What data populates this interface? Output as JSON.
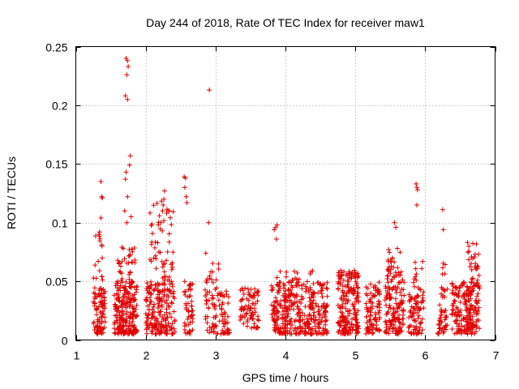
{
  "chart_data": {
    "type": "scatter",
    "title": "Day 244 of 2018, Rate Of TEC Index for receiver maw1",
    "xlabel": "GPS time / hours",
    "ylabel": "ROTI / TECUs",
    "xlim": [
      1,
      7
    ],
    "ylim": [
      0,
      0.25
    ],
    "x_ticks": [
      1,
      2,
      3,
      4,
      5,
      6,
      7
    ],
    "x_tick_labels": [
      "1",
      "2",
      "3",
      "4",
      "5",
      "6",
      "7"
    ],
    "y_ticks": [
      0,
      0.05,
      0.1,
      0.15,
      0.2,
      0.25
    ],
    "y_tick_labels": [
      "0",
      "0.05",
      "0.1",
      "0.15",
      "0.2",
      "0.25"
    ],
    "grid": true,
    "marker": "+",
    "series_color": "#e00000",
    "clusters": [
      {
        "x0": 1.25,
        "x1": 1.42,
        "ylo": 0.005,
        "yhi": 0.045,
        "n": 90
      },
      {
        "x0": 1.25,
        "x1": 1.4,
        "ylo": 0.05,
        "yhi": 0.09,
        "n": 14
      },
      {
        "x0": 1.55,
        "x1": 1.88,
        "ylo": 0.005,
        "yhi": 0.05,
        "n": 220
      },
      {
        "x0": 1.58,
        "x1": 1.86,
        "ylo": 0.05,
        "yhi": 0.08,
        "n": 30
      },
      {
        "x0": 2.0,
        "x1": 2.42,
        "ylo": 0.005,
        "yhi": 0.05,
        "n": 200
      },
      {
        "x0": 2.05,
        "x1": 2.4,
        "ylo": 0.05,
        "yhi": 0.12,
        "n": 50
      },
      {
        "x0": 2.55,
        "x1": 2.68,
        "ylo": 0.005,
        "yhi": 0.05,
        "n": 50
      },
      {
        "x0": 2.85,
        "x1": 3.2,
        "ylo": 0.005,
        "yhi": 0.045,
        "n": 90
      },
      {
        "x0": 2.86,
        "x1": 3.05,
        "ylo": 0.045,
        "yhi": 0.075,
        "n": 14
      },
      {
        "x0": 3.35,
        "x1": 3.62,
        "ylo": 0.01,
        "yhi": 0.045,
        "n": 80
      },
      {
        "x0": 3.8,
        "x1": 4.6,
        "ylo": 0.005,
        "yhi": 0.05,
        "n": 360
      },
      {
        "x0": 3.84,
        "x1": 4.4,
        "ylo": 0.05,
        "yhi": 0.06,
        "n": 14
      },
      {
        "x0": 4.75,
        "x1": 5.05,
        "ylo": 0.005,
        "yhi": 0.06,
        "n": 200
      },
      {
        "x0": 5.15,
        "x1": 5.35,
        "ylo": 0.005,
        "yhi": 0.05,
        "n": 90
      },
      {
        "x0": 5.42,
        "x1": 5.7,
        "ylo": 0.005,
        "yhi": 0.05,
        "n": 130
      },
      {
        "x0": 5.45,
        "x1": 5.68,
        "ylo": 0.05,
        "yhi": 0.08,
        "n": 36
      },
      {
        "x0": 5.76,
        "x1": 5.98,
        "ylo": 0.005,
        "yhi": 0.04,
        "n": 80
      },
      {
        "x0": 5.82,
        "x1": 5.98,
        "ylo": 0.04,
        "yhi": 0.08,
        "n": 14
      },
      {
        "x0": 6.18,
        "x1": 6.32,
        "ylo": 0.005,
        "yhi": 0.03,
        "n": 40
      },
      {
        "x0": 6.22,
        "x1": 6.32,
        "ylo": 0.03,
        "yhi": 0.07,
        "n": 14
      },
      {
        "x0": 6.38,
        "x1": 6.55,
        "ylo": 0.005,
        "yhi": 0.05,
        "n": 70
      },
      {
        "x0": 6.55,
        "x1": 6.78,
        "ylo": 0.005,
        "yhi": 0.05,
        "n": 130
      },
      {
        "x0": 6.6,
        "x1": 6.78,
        "ylo": 0.05,
        "yhi": 0.085,
        "n": 26
      }
    ],
    "points": [
      [
        1.32,
        0.067
      ],
      [
        1.33,
        0.09
      ],
      [
        1.34,
        0.092
      ],
      [
        1.36,
        0.104
      ],
      [
        1.37,
        0.122
      ],
      [
        1.38,
        0.121
      ],
      [
        1.36,
        0.135
      ],
      [
        1.62,
        0.065
      ],
      [
        1.66,
        0.079
      ],
      [
        1.68,
        0.078
      ],
      [
        1.7,
        0.11
      ],
      [
        1.71,
        0.137
      ],
      [
        1.72,
        0.143
      ],
      [
        1.73,
        0.1
      ],
      [
        1.74,
        0.122
      ],
      [
        1.77,
        0.149
      ],
      [
        1.78,
        0.157
      ],
      [
        1.79,
        0.105
      ],
      [
        1.71,
        0.208
      ],
      [
        1.74,
        0.205
      ],
      [
        1.72,
        0.24
      ],
      [
        1.74,
        0.238
      ],
      [
        1.75,
        0.233
      ],
      [
        1.73,
        0.226
      ],
      [
        2.18,
        0.098
      ],
      [
        2.22,
        0.1
      ],
      [
        2.26,
        0.12
      ],
      [
        2.27,
        0.127
      ],
      [
        2.25,
        0.115
      ],
      [
        2.3,
        0.108
      ],
      [
        2.32,
        0.11
      ],
      [
        2.34,
        0.11
      ],
      [
        2.55,
        0.139
      ],
      [
        2.57,
        0.138
      ],
      [
        2.56,
        0.13
      ],
      [
        2.58,
        0.122
      ],
      [
        2.59,
        0.117
      ],
      [
        2.9,
        0.1
      ],
      [
        2.91,
        0.213
      ],
      [
        3.84,
        0.094
      ],
      [
        3.86,
        0.096
      ],
      [
        3.88,
        0.098
      ],
      [
        3.87,
        0.086
      ],
      [
        5.56,
        0.1
      ],
      [
        5.58,
        0.096
      ],
      [
        5.87,
        0.133
      ],
      [
        5.88,
        0.13
      ],
      [
        5.89,
        0.128
      ],
      [
        5.88,
        0.115
      ],
      [
        6.25,
        0.111
      ],
      [
        6.26,
        0.094
      ]
    ]
  }
}
